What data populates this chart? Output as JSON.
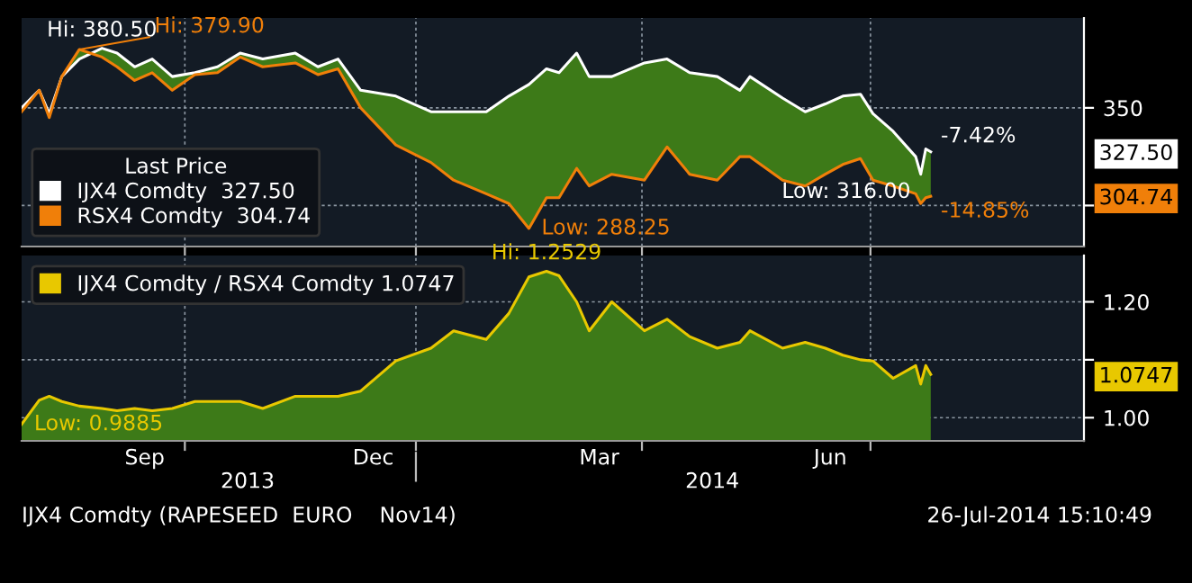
{
  "chart_data": [
    {
      "type": "line",
      "legend_title": "Last Price",
      "legend": "bottom left",
      "grid": true,
      "tick_labels": "y",
      "x": [
        "2013-07-28",
        "2013-08-04",
        "2013-08-08",
        "2013-08-13",
        "2013-08-20",
        "2013-08-29",
        "2013-09-04",
        "2013-09-11",
        "2013-09-18",
        "2013-09-26",
        "2013-10-05",
        "2013-10-14",
        "2013-10-23",
        "2013-11-01",
        "2013-11-14",
        "2013-11-23",
        "2013-12-01",
        "2013-12-10",
        "2013-12-24",
        "2014-01-07",
        "2014-01-16",
        "2014-01-29",
        "2014-02-07",
        "2014-02-15",
        "2014-02-22",
        "2014-02-27",
        "2014-03-06",
        "2014-03-11",
        "2014-03-20",
        "2014-04-02",
        "2014-04-11",
        "2014-04-20",
        "2014-05-01",
        "2014-05-10",
        "2014-05-14",
        "2014-05-27",
        "2014-06-05",
        "2014-06-13",
        "2014-06-20",
        "2014-06-27",
        "2014-07-02",
        "2014-07-10",
        "2014-07-19",
        "2014-07-21",
        "2014-07-23",
        "2014-07-25"
      ],
      "series": [
        {
          "name": "IJX4 Comdty  327.50",
          "color": "#ffffff",
          "values": [
            350,
            359,
            347,
            366,
            375,
            380.5,
            378,
            371,
            375,
            366,
            368,
            371,
            378,
            375,
            378,
            371,
            375,
            359,
            356,
            348,
            348,
            348,
            356,
            362,
            370,
            368,
            378,
            366,
            366,
            373,
            375,
            368,
            366,
            359,
            366,
            355,
            348,
            352,
            356,
            357,
            347,
            338,
            325,
            316,
            329,
            327.5
          ],
          "upper": [
            350,
            359,
            347,
            366,
            375,
            380.5,
            378,
            371,
            375,
            366,
            368,
            371,
            378,
            375,
            378,
            371,
            375,
            359,
            356,
            348,
            348,
            348,
            356,
            362,
            370,
            368,
            378,
            366,
            366,
            373,
            375,
            368,
            366,
            359,
            366,
            355,
            348,
            352,
            356,
            357,
            347,
            338,
            325,
            316,
            329,
            327.5
          ],
          "lower": [
            348,
            359,
            345,
            366,
            379.9,
            376,
            371,
            364,
            368,
            359,
            367,
            368,
            376,
            371,
            373,
            367,
            370,
            350,
            331,
            322,
            313,
            306,
            301,
            288.25,
            304,
            304,
            319,
            310,
            316,
            313,
            330,
            316,
            313,
            325,
            325,
            313,
            310,
            316,
            321,
            324,
            313,
            310,
            306,
            301,
            304,
            304.74
          ]
        },
        {
          "name": "RSX4 Comdty  304.74",
          "color": "#f07f09",
          "values": [
            348,
            359,
            345,
            366,
            379.9,
            376,
            371,
            364,
            368,
            359,
            367,
            368,
            376,
            371,
            373,
            367,
            370,
            350,
            331,
            322,
            313,
            306,
            301,
            288.25,
            304,
            304,
            319,
            310,
            316,
            313,
            330,
            316,
            313,
            325,
            325,
            313,
            310,
            316,
            321,
            324,
            313,
            310,
            306,
            301,
            304,
            304.74
          ]
        }
      ],
      "xlim": [
        "2013-07-28",
        "2014-09-24"
      ],
      "xticks": [
        {
          "value": "2013-10-01",
          "label": null
        },
        {
          "value": "2014-01-01",
          "label": null
        },
        {
          "value": "2014-04-01",
          "label": null
        },
        {
          "value": "2014-07-01",
          "label": null
        }
      ],
      "ylim": [
        279,
        396
      ],
      "yticks": [
        350,
        {
          "value": 300,
          "label": null
        },
        {
          "value": 327.5,
          "label": "327.50"
        },
        {
          "value": 304.74,
          "label": "304.74"
        }
      ],
      "annotations": [
        {
          "text": "Hi: 380.50",
          "x": "2013-08-29",
          "y": 380.5
        },
        {
          "text": "Hi: 379.90",
          "x": "2013-08-20",
          "y": 379.9
        },
        {
          "text": "Low: 288.25",
          "x": "2014-02-15",
          "y": 288.25
        },
        {
          "text": "Low: 316.00",
          "x": "2014-07-21",
          "y": 316
        },
        {
          "text": "-7.42%",
          "x": "2014-07-25",
          "y": 327.5
        },
        {
          "text": "-14.85%",
          "x": "2014-07-25",
          "y": 304.74
        }
      ]
    },
    {
      "type": "area",
      "legend": "top left",
      "grid": true,
      "x": [
        "2013-07-28",
        "2013-08-04",
        "2013-08-08",
        "2013-08-13",
        "2013-08-20",
        "2013-08-29",
        "2013-09-04",
        "2013-09-11",
        "2013-09-18",
        "2013-09-26",
        "2013-10-05",
        "2013-10-14",
        "2013-10-23",
        "2013-11-01",
        "2013-11-14",
        "2013-11-23",
        "2013-12-01",
        "2013-12-10",
        "2013-12-24",
        "2014-01-07",
        "2014-01-16",
        "2014-01-29",
        "2014-02-07",
        "2014-02-15",
        "2014-02-22",
        "2014-02-27",
        "2014-03-06",
        "2014-03-11",
        "2014-03-20",
        "2014-04-02",
        "2014-04-11",
        "2014-04-20",
        "2014-05-01",
        "2014-05-10",
        "2014-05-14",
        "2014-05-27",
        "2014-06-05",
        "2014-06-13",
        "2014-06-20",
        "2014-06-27",
        "2014-07-02",
        "2014-07-10",
        "2014-07-19",
        "2014-07-21",
        "2014-07-23",
        "2014-07-25"
      ],
      "series": [
        {
          "name": "IJX4 Comdty / RSX4 Comdty 1.0747",
          "color": "#e8c800",
          "values": [
            0.9885,
            1.03,
            1.037,
            1.028,
            1.02,
            1.016,
            1.012,
            1.016,
            1.012,
            1.016,
            1.028,
            1.028,
            1.028,
            1.016,
            1.037,
            1.037,
            1.037,
            1.046,
            1.098,
            1.12,
            1.15,
            1.135,
            1.18,
            1.243,
            1.2529,
            1.245,
            1.2,
            1.15,
            1.2,
            1.15,
            1.17,
            1.14,
            1.12,
            1.13,
            1.15,
            1.12,
            1.13,
            1.12,
            1.108,
            1.1,
            1.098,
            1.068,
            1.09,
            1.058,
            1.09,
            1.0747
          ]
        }
      ],
      "xlim": [
        "2013-07-28",
        "2014-09-24"
      ],
      "xticks": [
        {
          "value": "2013-10-01",
          "label": null
        },
        {
          "value": "2014-01-01",
          "label": null
        },
        {
          "value": "2014-04-01",
          "label": null
        },
        {
          "value": "2014-07-01",
          "label": null
        },
        {
          "value": "2013-09-15",
          "label": "Sep"
        },
        {
          "value": "2013-12-15",
          "label": "Dec"
        },
        {
          "value": "2014-03-15",
          "label": "Mar"
        },
        {
          "value": "2014-06-15",
          "label": "Jun"
        }
      ],
      "x2lim": [
        "2013-07-28",
        "2014-09-24"
      ],
      "x2ticks": [
        {
          "value": "2013-10-26",
          "label": "2013"
        },
        {
          "value": "2014-04-29",
          "label": "2014"
        },
        {
          "value": "2014-01-01",
          "label": null
        }
      ],
      "ylim": [
        0.96,
        1.28
      ],
      "yticks": [
        {
          "value": 1.0,
          "label": "1.00"
        },
        {
          "value": 1.1,
          "label": null
        },
        {
          "value": 1.2,
          "label": "1.20"
        },
        {
          "value": 1.0747,
          "label": "1.0747"
        }
      ],
      "annotations": [
        {
          "text": "Hi: 1.2529",
          "x": "2014-02-22",
          "y": 1.2529
        },
        {
          "text": "Low: 0.9885",
          "x": "2013-07-28",
          "y": 0.9885
        },
        "IJX4 Comdty (RAPESEED  EURO    Nov14)",
        "26-Jul-2014 15:10:49"
      ]
    }
  ]
}
